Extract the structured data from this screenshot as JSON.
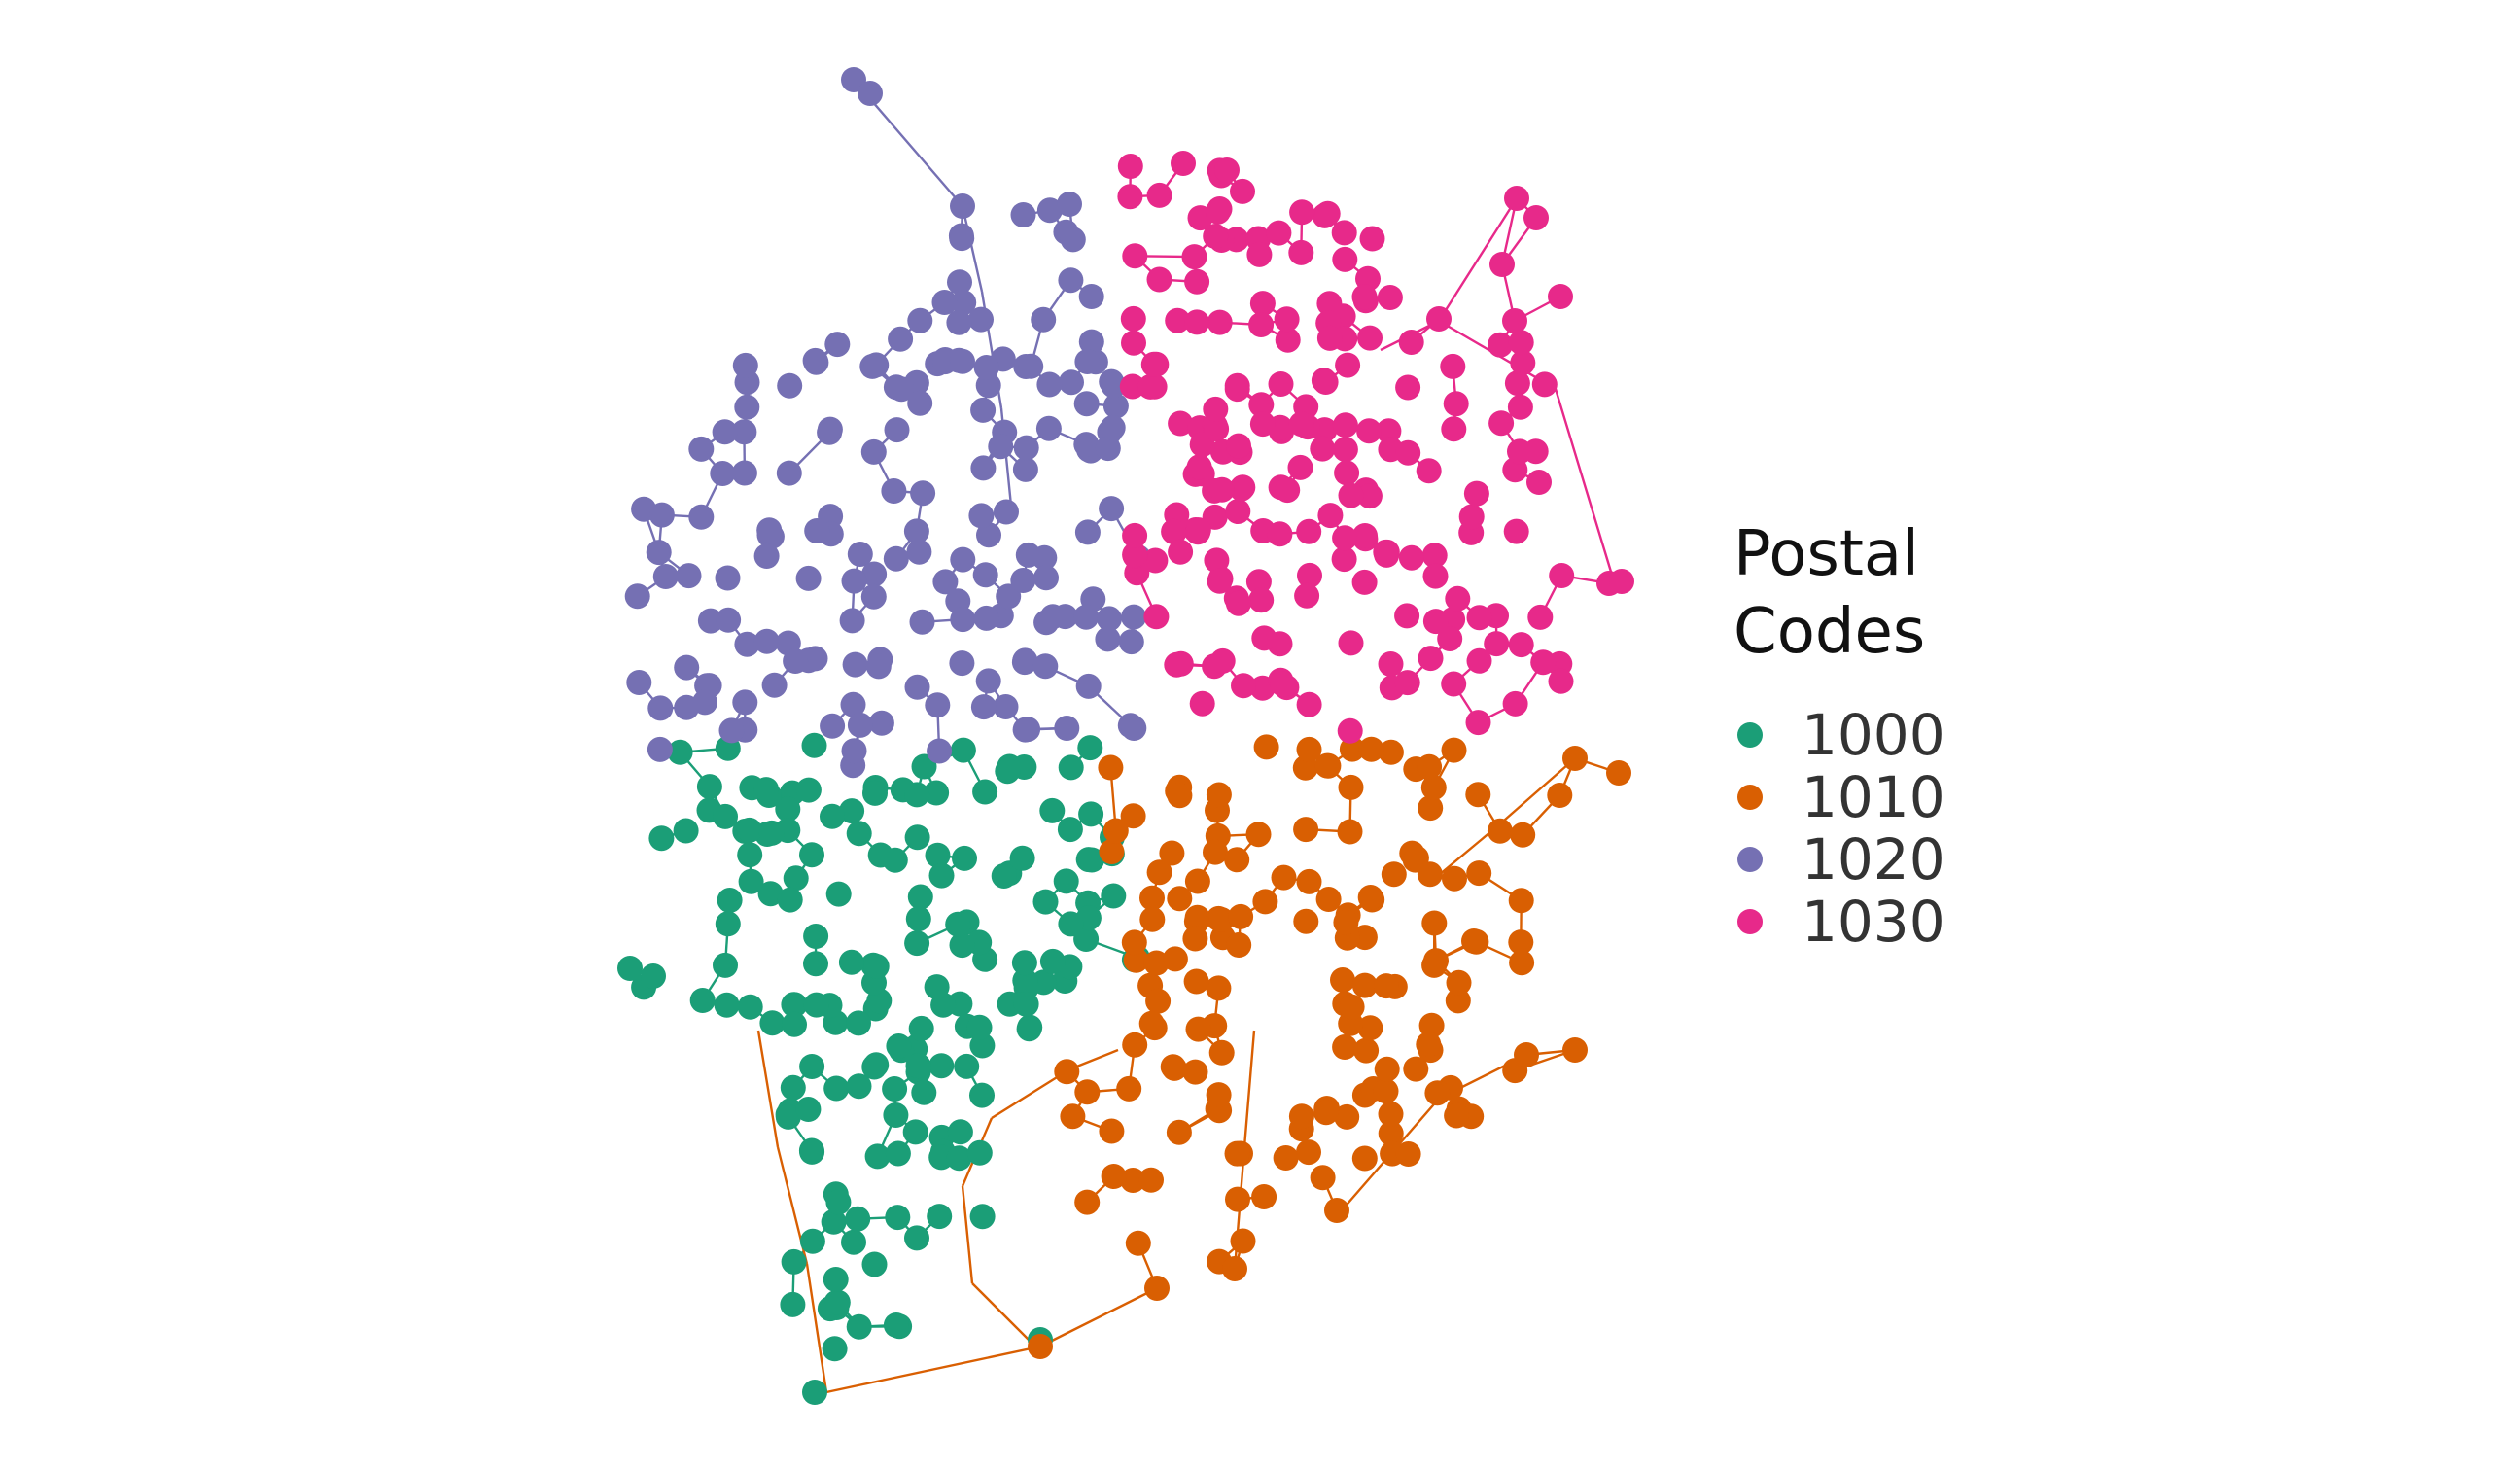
{
  "legend": {
    "title": "Postal\nCodes",
    "items": [
      {
        "label": "1000",
        "color": "#1b9e77"
      },
      {
        "label": "1010",
        "color": "#d95f02"
      },
      {
        "label": "1020",
        "color": "#7570b3"
      },
      {
        "label": "1030",
        "color": "#e7298a"
      }
    ]
  },
  "chart_data": {
    "type": "scatter",
    "description_visible": "road network graph with nodes colored by postal code",
    "grid": false,
    "axes": false,
    "legend_placement": "right",
    "series": [
      {
        "name": "1000",
        "color": "#1b9e77"
      },
      {
        "name": "1010",
        "color": "#d95f02"
      },
      {
        "name": "1020",
        "color": "#7570b3"
      },
      {
        "name": "1030",
        "color": "#e7298a"
      }
    ]
  }
}
